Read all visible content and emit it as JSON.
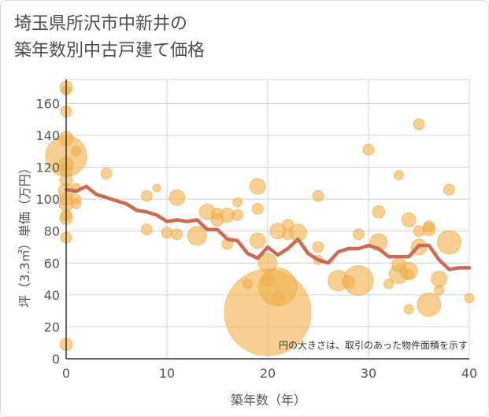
{
  "title_line1": "埼玉県所沢市中新井の",
  "title_line2": "築年数別中古戸建て価格",
  "chart_data": {
    "type": "scatter",
    "xlabel": "築年数（年）",
    "ylabel": "坪（3.3㎡）単価（万円）",
    "xlim": [
      0,
      40
    ],
    "ylim": [
      0,
      175
    ],
    "xticks": [
      0,
      10,
      20,
      30,
      40
    ],
    "yticks": [
      0,
      20,
      40,
      60,
      80,
      100,
      120,
      140,
      160
    ],
    "grid": true,
    "note": "円の大きさは、取引のあった物件面積を示す",
    "colors": {
      "bubble": "#f0b14d",
      "line": "#cc6a55"
    },
    "bubbles": [
      {
        "x": 0,
        "y": 170,
        "s": 8
      },
      {
        "x": 0,
        "y": 168,
        "s": 6
      },
      {
        "x": 0,
        "y": 155,
        "s": 7
      },
      {
        "x": 0,
        "y": 138,
        "s": 9
      },
      {
        "x": 0,
        "y": 127,
        "s": 26
      },
      {
        "x": 0,
        "y": 122,
        "s": 9
      },
      {
        "x": 0,
        "y": 118,
        "s": 8
      },
      {
        "x": 0,
        "y": 112,
        "s": 8
      },
      {
        "x": 0,
        "y": 105,
        "s": 10
      },
      {
        "x": 0,
        "y": 100,
        "s": 8
      },
      {
        "x": 0,
        "y": 97,
        "s": 9
      },
      {
        "x": 0,
        "y": 90,
        "s": 7
      },
      {
        "x": 0,
        "y": 88,
        "s": 8
      },
      {
        "x": 0,
        "y": 76,
        "s": 7
      },
      {
        "x": 0,
        "y": 9,
        "s": 8
      },
      {
        "x": 1,
        "y": 130,
        "s": 6
      },
      {
        "x": 1,
        "y": 107,
        "s": 6
      },
      {
        "x": 1,
        "y": 100,
        "s": 6
      },
      {
        "x": 1,
        "y": 97,
        "s": 6
      },
      {
        "x": 4,
        "y": 116,
        "s": 7
      },
      {
        "x": 8,
        "y": 102,
        "s": 7
      },
      {
        "x": 8,
        "y": 81,
        "s": 7
      },
      {
        "x": 9,
        "y": 107,
        "s": 5
      },
      {
        "x": 10,
        "y": 79,
        "s": 7
      },
      {
        "x": 11,
        "y": 101,
        "s": 10
      },
      {
        "x": 11,
        "y": 78,
        "s": 7
      },
      {
        "x": 13,
        "y": 77,
        "s": 12
      },
      {
        "x": 14,
        "y": 92,
        "s": 10
      },
      {
        "x": 15,
        "y": 91,
        "s": 7
      },
      {
        "x": 15,
        "y": 87,
        "s": 8
      },
      {
        "x": 16,
        "y": 90,
        "s": 9
      },
      {
        "x": 16,
        "y": 72,
        "s": 7
      },
      {
        "x": 17,
        "y": 98,
        "s": 6
      },
      {
        "x": 17,
        "y": 90,
        "s": 7
      },
      {
        "x": 18,
        "y": 47,
        "s": 6
      },
      {
        "x": 19,
        "y": 108,
        "s": 10
      },
      {
        "x": 19,
        "y": 94,
        "s": 7
      },
      {
        "x": 19,
        "y": 74,
        "s": 10
      },
      {
        "x": 20,
        "y": 60,
        "s": 12
      },
      {
        "x": 20,
        "y": 49,
        "s": 7
      },
      {
        "x": 20,
        "y": 29,
        "s": 55
      },
      {
        "x": 21,
        "y": 80,
        "s": 10
      },
      {
        "x": 21,
        "y": 45,
        "s": 24
      },
      {
        "x": 21,
        "y": 38,
        "s": 8
      },
      {
        "x": 22,
        "y": 84,
        "s": 7
      },
      {
        "x": 22,
        "y": 78,
        "s": 7
      },
      {
        "x": 23,
        "y": 79,
        "s": 11
      },
      {
        "x": 25,
        "y": 102,
        "s": 7
      },
      {
        "x": 25,
        "y": 70,
        "s": 7
      },
      {
        "x": 25,
        "y": 62,
        "s": 6
      },
      {
        "x": 27,
        "y": 49,
        "s": 13
      },
      {
        "x": 28,
        "y": 48,
        "s": 8
      },
      {
        "x": 29,
        "y": 78,
        "s": 7
      },
      {
        "x": 29,
        "y": 49,
        "s": 19
      },
      {
        "x": 30,
        "y": 131,
        "s": 7
      },
      {
        "x": 31,
        "y": 92,
        "s": 8
      },
      {
        "x": 31,
        "y": 73,
        "s": 11
      },
      {
        "x": 32,
        "y": 47,
        "s": 6
      },
      {
        "x": 33,
        "y": 115,
        "s": 6
      },
      {
        "x": 33,
        "y": 59,
        "s": 9
      },
      {
        "x": 33,
        "y": 53,
        "s": 12
      },
      {
        "x": 34,
        "y": 87,
        "s": 9
      },
      {
        "x": 34,
        "y": 55,
        "s": 11
      },
      {
        "x": 34,
        "y": 53,
        "s": 6
      },
      {
        "x": 34,
        "y": 31,
        "s": 6
      },
      {
        "x": 35,
        "y": 147,
        "s": 7
      },
      {
        "x": 35,
        "y": 80,
        "s": 7
      },
      {
        "x": 35,
        "y": 70,
        "s": 10
      },
      {
        "x": 36,
        "y": 83,
        "s": 7
      },
      {
        "x": 36,
        "y": 81,
        "s": 8
      },
      {
        "x": 36,
        "y": 34,
        "s": 15
      },
      {
        "x": 37,
        "y": 50,
        "s": 10
      },
      {
        "x": 37,
        "y": 43,
        "s": 6
      },
      {
        "x": 38,
        "y": 106,
        "s": 7
      },
      {
        "x": 38,
        "y": 73,
        "s": 15
      },
      {
        "x": 40,
        "y": 38,
        "s": 6
      }
    ],
    "trend": {
      "x": [
        0,
        1,
        2,
        3,
        4,
        5,
        6,
        7,
        8,
        9,
        10,
        11,
        12,
        13,
        14,
        15,
        16,
        17,
        18,
        19,
        20,
        21,
        22,
        23,
        24,
        25,
        26,
        27,
        28,
        29,
        30,
        31,
        32,
        33,
        34,
        35,
        36,
        37,
        38,
        39,
        40
      ],
      "y": [
        106,
        105,
        108,
        103,
        101,
        99,
        97,
        93,
        92,
        90,
        86,
        87,
        86,
        87,
        81,
        81,
        75,
        74,
        66,
        63,
        70,
        65,
        69,
        75,
        66,
        62,
        60,
        67,
        69,
        69,
        71,
        69,
        64,
        64,
        64,
        71,
        71,
        62,
        56,
        57,
        57
      ]
    }
  }
}
